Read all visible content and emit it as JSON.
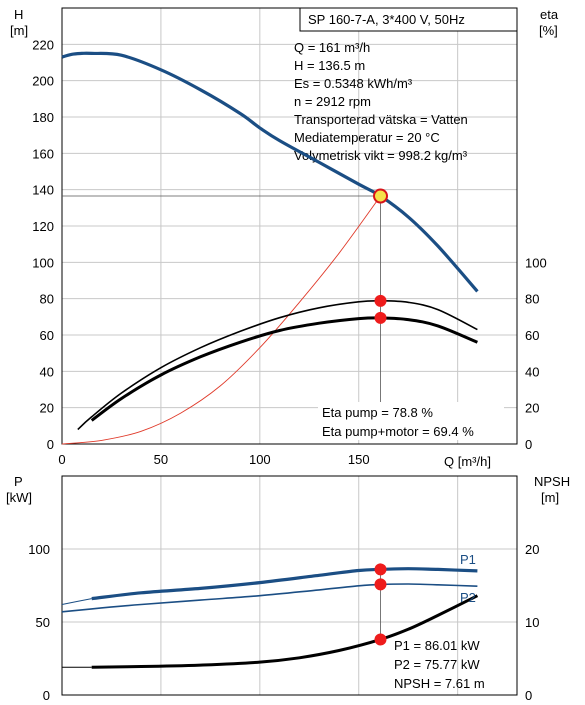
{
  "chart_data": [
    {
      "type": "line",
      "title": "SP 160-7-A, 3*400 V, 50Hz",
      "xlabel": "Q [m³/h]",
      "ylabel_left": [
        "H",
        "[m]"
      ],
      "ylabel_right": [
        "eta",
        "[%]"
      ],
      "xlim": [
        0,
        230
      ],
      "ylim_left": [
        0,
        240
      ],
      "ylim_right": [
        0,
        240
      ],
      "xticks": [
        0,
        50,
        100,
        150
      ],
      "yticks_left": [
        0,
        20,
        40,
        60,
        80,
        100,
        120,
        140,
        160,
        180,
        200,
        220
      ],
      "yticks_right": [
        0,
        20,
        40,
        60,
        80,
        100
      ],
      "grid": true,
      "info_lines": [
        "Q = 161 m³/h",
        "H = 136.5 m",
        "Es = 0.5348 kWh/m³",
        "n = 2912 rpm",
        "Transporterad vätska = Vatten",
        "Mediatemperatur = 20 °C",
        "Volymetrisk vikt = 998.2 kg/m³"
      ],
      "eta_lines": [
        "Eta pump = 78.8 %",
        "Eta pump+motor = 69.4 %"
      ],
      "duty_point": {
        "q": 161,
        "h": 136.5,
        "eta_pump": 78.8,
        "eta_total": 69.4
      },
      "series": [
        {
          "key": "h",
          "axis": "left",
          "color": "#1b4e84",
          "x": [
            0,
            5,
            10,
            15,
            30,
            50,
            70,
            90,
            100,
            110,
            130,
            150,
            161,
            175,
            190,
            210
          ],
          "y": [
            213,
            214.5,
            215,
            215,
            214,
            206,
            195,
            182,
            174,
            167,
            155,
            143,
            136.5,
            125,
            109,
            84
          ]
        },
        {
          "key": "h_thin",
          "axis": "left",
          "color": "#1b4e84",
          "x": [
            0,
            5,
            10,
            15
          ],
          "y": [
            213,
            214.5,
            215,
            215
          ]
        },
        {
          "key": "eta_pump",
          "axis": "right",
          "color": "#000000",
          "x": [
            8,
            15,
            30,
            50,
            70,
            90,
            110,
            130,
            150,
            161,
            175,
            190,
            210
          ],
          "y": [
            8,
            15,
            28,
            42,
            53,
            62,
            69.5,
            75,
            78.3,
            78.8,
            78,
            74,
            63
          ]
        },
        {
          "key": "eta_total",
          "axis": "right",
          "color": "#000000",
          "x": [
            15,
            30,
            50,
            70,
            90,
            110,
            130,
            150,
            161,
            175,
            190,
            210
          ],
          "y": [
            13,
            25,
            38,
            48,
            56,
            62.5,
            66.5,
            69,
            69.4,
            68.5,
            65,
            56
          ]
        },
        {
          "key": "system",
          "axis": "left",
          "color": "#e03a2a",
          "x": [
            0,
            20,
            40,
            60,
            80,
            100,
            120,
            140,
            161
          ],
          "y": [
            0,
            2,
            7,
            17,
            32,
            53,
            78,
            105,
            136.5
          ]
        }
      ]
    },
    {
      "type": "line",
      "title": "",
      "xlabel": "",
      "ylabel_left": [
        "P",
        "[kW]"
      ],
      "ylabel_right": [
        "NPSH",
        "[m]"
      ],
      "xlim": [
        0,
        230
      ],
      "ylim_left": [
        0,
        150
      ],
      "ylim_right": [
        0,
        30
      ],
      "yticks_left": [
        0,
        50,
        100
      ],
      "yticks_right": [
        0,
        10,
        20
      ],
      "grid": true,
      "info_lines": [
        "P1 = 86.01 kW",
        "P2 = 75.77 kW",
        "NPSH = 7.61 m"
      ],
      "series_labels": [
        "P1",
        "P2"
      ],
      "duty_point": {
        "q": 161,
        "p1": 86.01,
        "p2": 75.77,
        "npsh": 7.61
      },
      "series": [
        {
          "key": "p1",
          "axis": "left",
          "color": "#1b4e84",
          "x": [
            15,
            40,
            70,
            100,
            130,
            150,
            161,
            175,
            190,
            210
          ],
          "y": [
            66,
            70,
            73,
            77,
            82,
            85.3,
            86.01,
            86.5,
            86,
            85
          ]
        },
        {
          "key": "p1_thin",
          "axis": "left",
          "color": "#1b4e84",
          "x": [
            0,
            15
          ],
          "y": [
            62,
            66
          ]
        },
        {
          "key": "p2",
          "axis": "left",
          "color": "#1b4e84",
          "x": [
            0,
            15,
            40,
            70,
            100,
            130,
            150,
            161,
            175,
            190,
            210
          ],
          "y": [
            57,
            59,
            62,
            65,
            68,
            72,
            74.8,
            75.77,
            76,
            75.5,
            74.5
          ]
        },
        {
          "key": "npsh",
          "axis": "right",
          "color": "#000000",
          "x": [
            15,
            40,
            70,
            100,
            120,
            140,
            161,
            175,
            190,
            210
          ],
          "y": [
            3.8,
            3.9,
            4.1,
            4.5,
            5.1,
            6.1,
            7.61,
            9.0,
            10.9,
            13.6
          ]
        },
        {
          "key": "npsh_thin",
          "axis": "right",
          "color": "#000000",
          "x": [
            0,
            15
          ],
          "y": [
            3.8,
            3.8
          ]
        }
      ]
    }
  ]
}
